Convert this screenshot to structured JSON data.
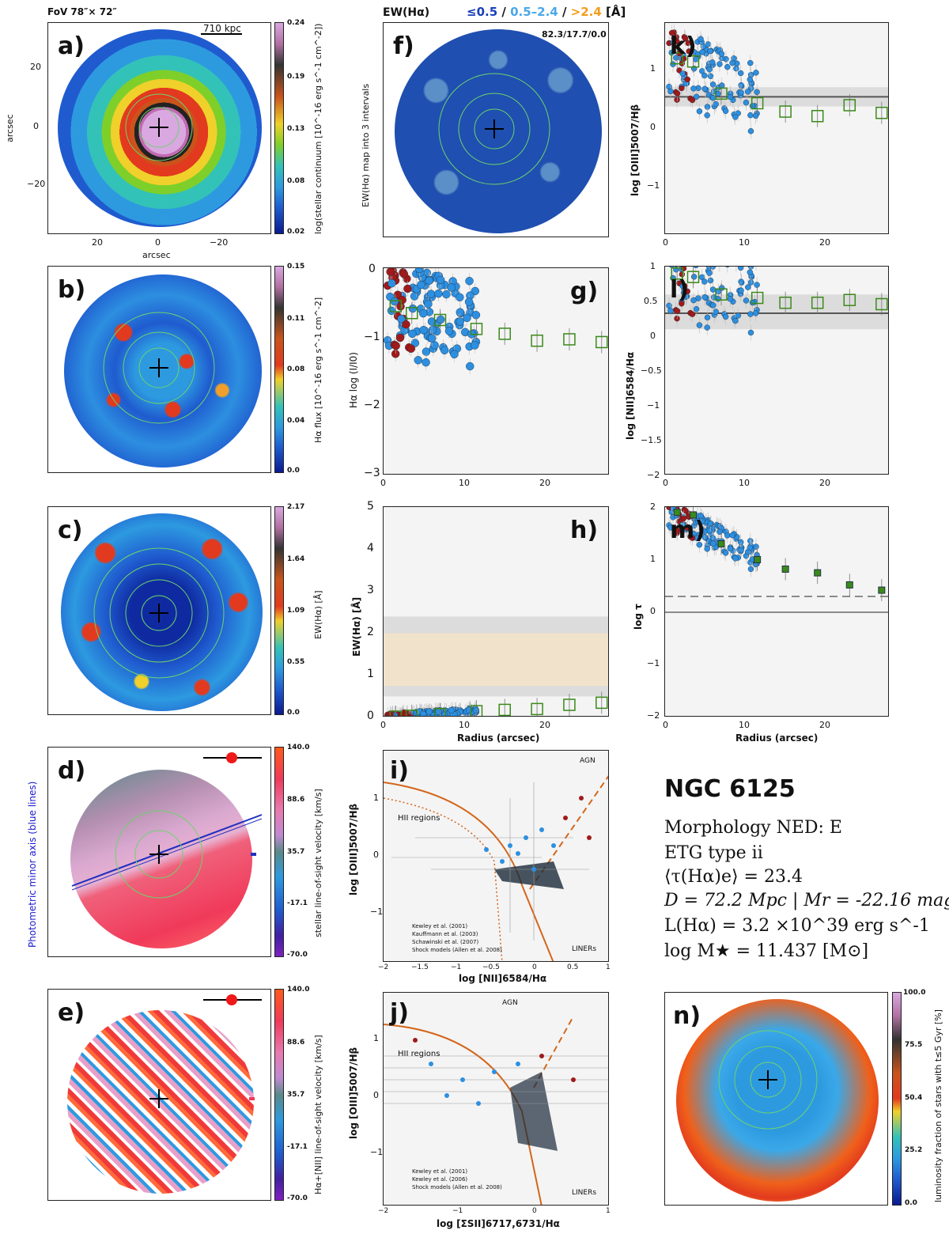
{
  "galaxy": {
    "name": "NGC 6125",
    "morphology": "Morphology NED: E",
    "etg_type": "ETG type ii",
    "tau": "⟨τ(Hα)e⟩ = 23.4",
    "distance": "D = 72.2 Mpc | Mr = -22.16 mag",
    "luminosity": "L(Hα) = 3.2 ×10^39 erg s^-1",
    "mass": "log M★ = 11.437 [M⊙]"
  },
  "header": {
    "fov": "FoV 78″× 72″",
    "ew_title": "EW(Hα)",
    "ew_intervals": {
      "low": "≤0.5",
      "sep1": " / ",
      "mid": "0.5–2.4",
      "sep2": " / ",
      "high": ">2.4",
      "unit": " [Å]"
    },
    "ew_color_low": "#1a3fb8",
    "ew_color_mid": "#4aa8e8",
    "ew_color_high": "#f39c1a"
  },
  "panels": {
    "a": {
      "letter": "a)",
      "scale": "710 kpc",
      "xlabel": "arcsec",
      "ylabel": "arcsec",
      "cbar_label": "log(stellar continuum [10^-16 erg s^-1 cm^-2])",
      "cbar_ticks": [
        "0.24",
        "0.19",
        "0.13",
        "0.08",
        "0.02"
      ],
      "xticks": [
        "20",
        "0",
        "−20"
      ],
      "yticks": [
        "20",
        "0",
        "−20"
      ]
    },
    "b": {
      "letter": "b)",
      "cbar_label": "Hα flux [10^-16 erg s^-1 cm^-2]",
      "cbar_ticks": [
        "0.15",
        "0.11",
        "0.08",
        "0.04",
        "0.0"
      ]
    },
    "c": {
      "letter": "c)",
      "cbar_label": "EW(Hα) [Å]",
      "cbar_ticks": [
        "2.17",
        "1.64",
        "1.09",
        "0.55",
        "0.0"
      ]
    },
    "d": {
      "letter": "d)",
      "side_label": "Photometric minor axis (blue lines)",
      "cbar_label": "stellar line-of-sight velocity [km/s]",
      "cbar_ticks": [
        "140.0",
        "88.6",
        "35.7",
        "-17.1",
        "-70.0"
      ]
    },
    "e": {
      "letter": "e)",
      "cbar_label": "Hα+[NII] line-of-sight velocity [km/s]",
      "cbar_ticks": [
        "140.0",
        "88.6",
        "35.7",
        "-17.1",
        "-70.0"
      ]
    },
    "f": {
      "letter": "f)",
      "ylabel": "EW(Hα) map into 3 intervals",
      "corner": "82.3/17.7/0.0"
    },
    "g": {
      "letter": "g)",
      "ylabel": "Hα log (I/I0)",
      "yticks": [
        "0",
        "−1",
        "−2",
        "−3"
      ],
      "xticks": [
        "0",
        "10",
        "20"
      ]
    },
    "h": {
      "letter": "h)",
      "ylabel": "EW(Hα) [Å]",
      "xlabel": "Radius (arcsec)",
      "yticks": [
        "5",
        "4",
        "3",
        "2",
        "1",
        "0"
      ],
      "xticks": [
        "0",
        "10",
        "20"
      ]
    },
    "i": {
      "letter": "i)",
      "ylabel": "log [OIII]5007/Hβ",
      "xlabel": "log [NII]6584/Hα",
      "agn": "AGN",
      "hii": "HII regions",
      "liners": "LINERs",
      "xticks": [
        "−2",
        "−1.5",
        "−1",
        "−0.5",
        "0",
        "0.5",
        "1"
      ],
      "yticks": [
        "1",
        "0",
        "−1"
      ],
      "legend": [
        "Kewley et al. (2001)",
        "Kauffmann et al. (2003)",
        "Schawinski et al. (2007)",
        "Shock models (Allen et al. 2008)"
      ]
    },
    "j": {
      "letter": "j)",
      "ylabel": "log [OIII]5007/Hβ",
      "xlabel": "log [ΣSII]6717,6731/Hα",
      "agn": "AGN",
      "hii": "HII regions",
      "liners": "LINERs",
      "xticks": [
        "−2",
        "−1",
        "0",
        "1"
      ],
      "yticks": [
        "1",
        "0",
        "−1"
      ],
      "legend": [
        "Kewley et al. (2001)",
        "Kewley et al. (2006)",
        "Shock models (Allen et al. 2008)"
      ]
    },
    "k": {
      "letter": "k)",
      "ylabel": "log [OIII]5007/Hβ",
      "yticks": [
        "1",
        "0",
        "−1"
      ],
      "xticks": [
        "0",
        "10",
        "20"
      ]
    },
    "l": {
      "letter": "l)",
      "ylabel": "log [NII]6584/Hα",
      "yticks": [
        "1",
        "0.5",
        "0",
        "−0.5",
        "−1",
        "−1.5",
        "−2"
      ],
      "xticks": [
        "0",
        "10",
        "20"
      ]
    },
    "m": {
      "letter": "m)",
      "ylabel": "log τ",
      "xlabel": "Radius (arcsec)",
      "yticks": [
        "2",
        "1",
        "0",
        "−1",
        "−2"
      ],
      "xticks": [
        "0",
        "10",
        "20"
      ]
    },
    "n": {
      "letter": "n)",
      "cbar_label": "luminosity fraction of stars with t≤5 Gyr [%]",
      "cbar_ticks": [
        "100.0",
        "75.5",
        "50.4",
        "25.2",
        "0.0"
      ]
    }
  },
  "chart_data": [
    {
      "type": "scatter",
      "panel": "g",
      "ylabel": "Hα log (I/I0)",
      "xlim": [
        0,
        28
      ],
      "ylim": [
        -3,
        0
      ],
      "series": [
        {
          "name": "annular profile",
          "x": [
            1.5,
            3.5,
            7,
            11.5,
            15,
            19,
            23,
            27
          ],
          "y": [
            -0.55,
            -0.65,
            -0.75,
            -0.88,
            -0.95,
            -1.05,
            -1.03,
            -1.07
          ]
        }
      ]
    },
    {
      "type": "scatter",
      "panel": "h",
      "ylabel": "EW(Hα) [Å]",
      "xlabel": "Radius (arcsec)",
      "xlim": [
        0,
        28
      ],
      "ylim": [
        0,
        5
      ],
      "series": [
        {
          "name": "annular profile",
          "x": [
            1.5,
            3.5,
            7,
            11.5,
            15,
            19,
            23,
            27
          ],
          "y": [
            0.02,
            0.04,
            0.08,
            0.15,
            0.18,
            0.2,
            0.3,
            0.35
          ]
        }
      ]
    },
    {
      "type": "scatter",
      "panel": "k",
      "ylabel": "log [OIII]5007/Hβ",
      "xlim": [
        0,
        28
      ],
      "ylim": [
        -1.8,
        1.5
      ],
      "series": [
        {
          "name": "annular profile",
          "x": [
            1.5,
            3.5,
            7,
            11.5,
            15,
            19,
            23,
            27
          ],
          "y": [
            0.95,
            0.9,
            0.4,
            0.25,
            0.12,
            0.05,
            0.22,
            0.1
          ]
        }
      ]
    },
    {
      "type": "scatter",
      "panel": "l",
      "ylabel": "log [NII]6584/Hα",
      "xlim": [
        0,
        28
      ],
      "ylim": [
        -2,
        1
      ],
      "series": [
        {
          "name": "annular profile",
          "x": [
            1.5,
            3.5,
            7,
            11.5,
            15,
            19,
            23,
            27
          ],
          "y": [
            0.9,
            0.85,
            0.6,
            0.55,
            0.48,
            0.48,
            0.52,
            0.46
          ]
        }
      ]
    },
    {
      "type": "scatter",
      "panel": "m",
      "ylabel": "log τ",
      "xlabel": "Radius (arcsec)",
      "xlim": [
        0,
        28
      ],
      "ylim": [
        -2,
        2
      ],
      "series": [
        {
          "name": "annular profile",
          "x": [
            1.5,
            3.5,
            7,
            11.5,
            15,
            19,
            23,
            27
          ],
          "y": [
            1.9,
            1.85,
            1.3,
            1.0,
            0.82,
            0.75,
            0.52,
            0.42
          ]
        }
      ]
    }
  ]
}
